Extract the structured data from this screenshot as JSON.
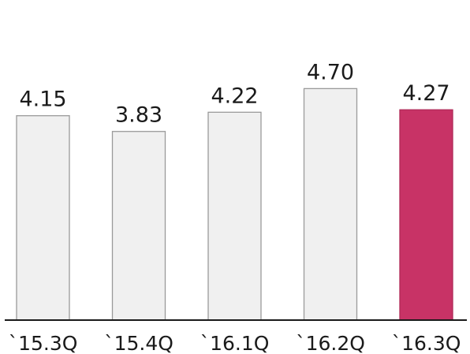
{
  "chart_data": {
    "type": "bar",
    "categories": [
      "`15.3Q",
      "`15.4Q",
      "`16.1Q",
      "`16.2Q",
      "`16.3Q"
    ],
    "values": [
      4.15,
      3.83,
      4.22,
      4.7,
      4.27
    ],
    "value_labels": [
      "4.15",
      "3.83",
      "4.22",
      "4.70",
      "4.27"
    ],
    "title": "",
    "xlabel": "",
    "ylabel": "",
    "ylim": [
      0,
      4.9
    ],
    "grid": false,
    "legend": "none",
    "colors": {
      "default_bar": "#f0f0f0",
      "default_bar_border": "#9a9a9a",
      "highlight_bar": "#c83366",
      "highlight_bar_border": "#b02a58",
      "axis_line": "#1a1a1a"
    },
    "highlight_index": 4
  }
}
